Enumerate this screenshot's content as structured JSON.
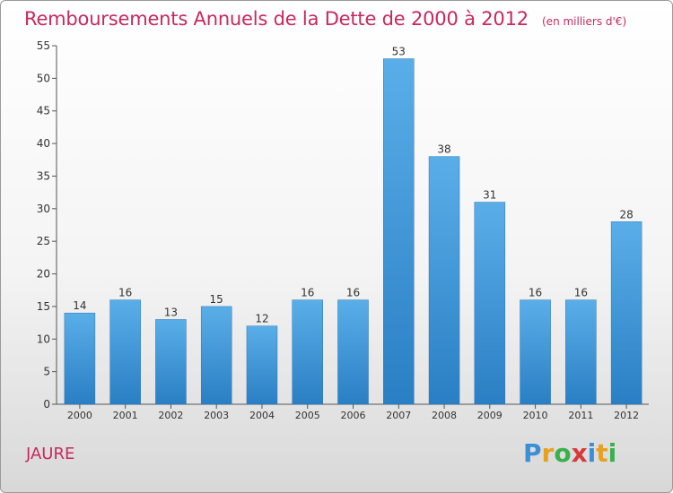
{
  "header": {
    "title": "Remboursements Annuels de la Dette de 2000 à 2012",
    "subtitle": "(en milliers d'€)"
  },
  "commune": "JAURE",
  "logo": {
    "text": "Proxiti",
    "letters": [
      {
        "char": "P",
        "color": "#3a8fd8"
      },
      {
        "char": "r",
        "color": "#e8a020"
      },
      {
        "char": "o",
        "color": "#3ab04a"
      },
      {
        "char": "x",
        "color": "#d83a3a"
      },
      {
        "char": "i",
        "color": "#3a8fd8"
      },
      {
        "char": "t",
        "color": "#e8a020"
      },
      {
        "char": "i",
        "color": "#3ab04a"
      }
    ]
  },
  "colors": {
    "bar_top": "#5aaee8",
    "bar_bottom": "#2a7fc4",
    "accent": "#c8285e"
  },
  "chart_data": {
    "type": "bar",
    "title": "Remboursements Annuels de la Dette de 2000 à 2012",
    "subtitle": "(en milliers d'€)",
    "categories": [
      "2000",
      "2001",
      "2002",
      "2003",
      "2004",
      "2005",
      "2006",
      "2007",
      "2008",
      "2009",
      "2010",
      "2011",
      "2012"
    ],
    "values": [
      14,
      16,
      13,
      15,
      12,
      16,
      16,
      53,
      38,
      31,
      16,
      16,
      28
    ],
    "ylim": [
      0,
      55
    ],
    "yticks": [
      0,
      5,
      10,
      15,
      20,
      25,
      30,
      35,
      40,
      45,
      50,
      55
    ],
    "xlabel": "",
    "ylabel": "",
    "grid": false,
    "legend": "none"
  }
}
